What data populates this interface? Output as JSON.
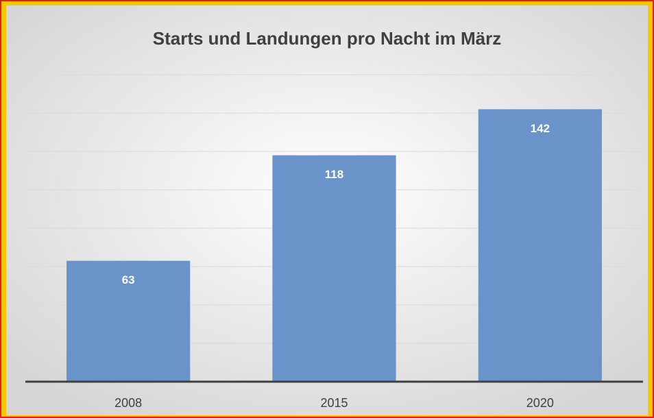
{
  "chart_data": {
    "type": "bar",
    "title": "Starts und Landungen pro Nacht im März",
    "categories": [
      "2008",
      "2015",
      "2020"
    ],
    "values": [
      63,
      118,
      142
    ],
    "color": "#6a93c9",
    "ylim": [
      0,
      160
    ],
    "yticks": [
      0,
      20,
      40,
      60,
      80,
      100,
      120,
      140,
      160
    ],
    "grid": true
  }
}
